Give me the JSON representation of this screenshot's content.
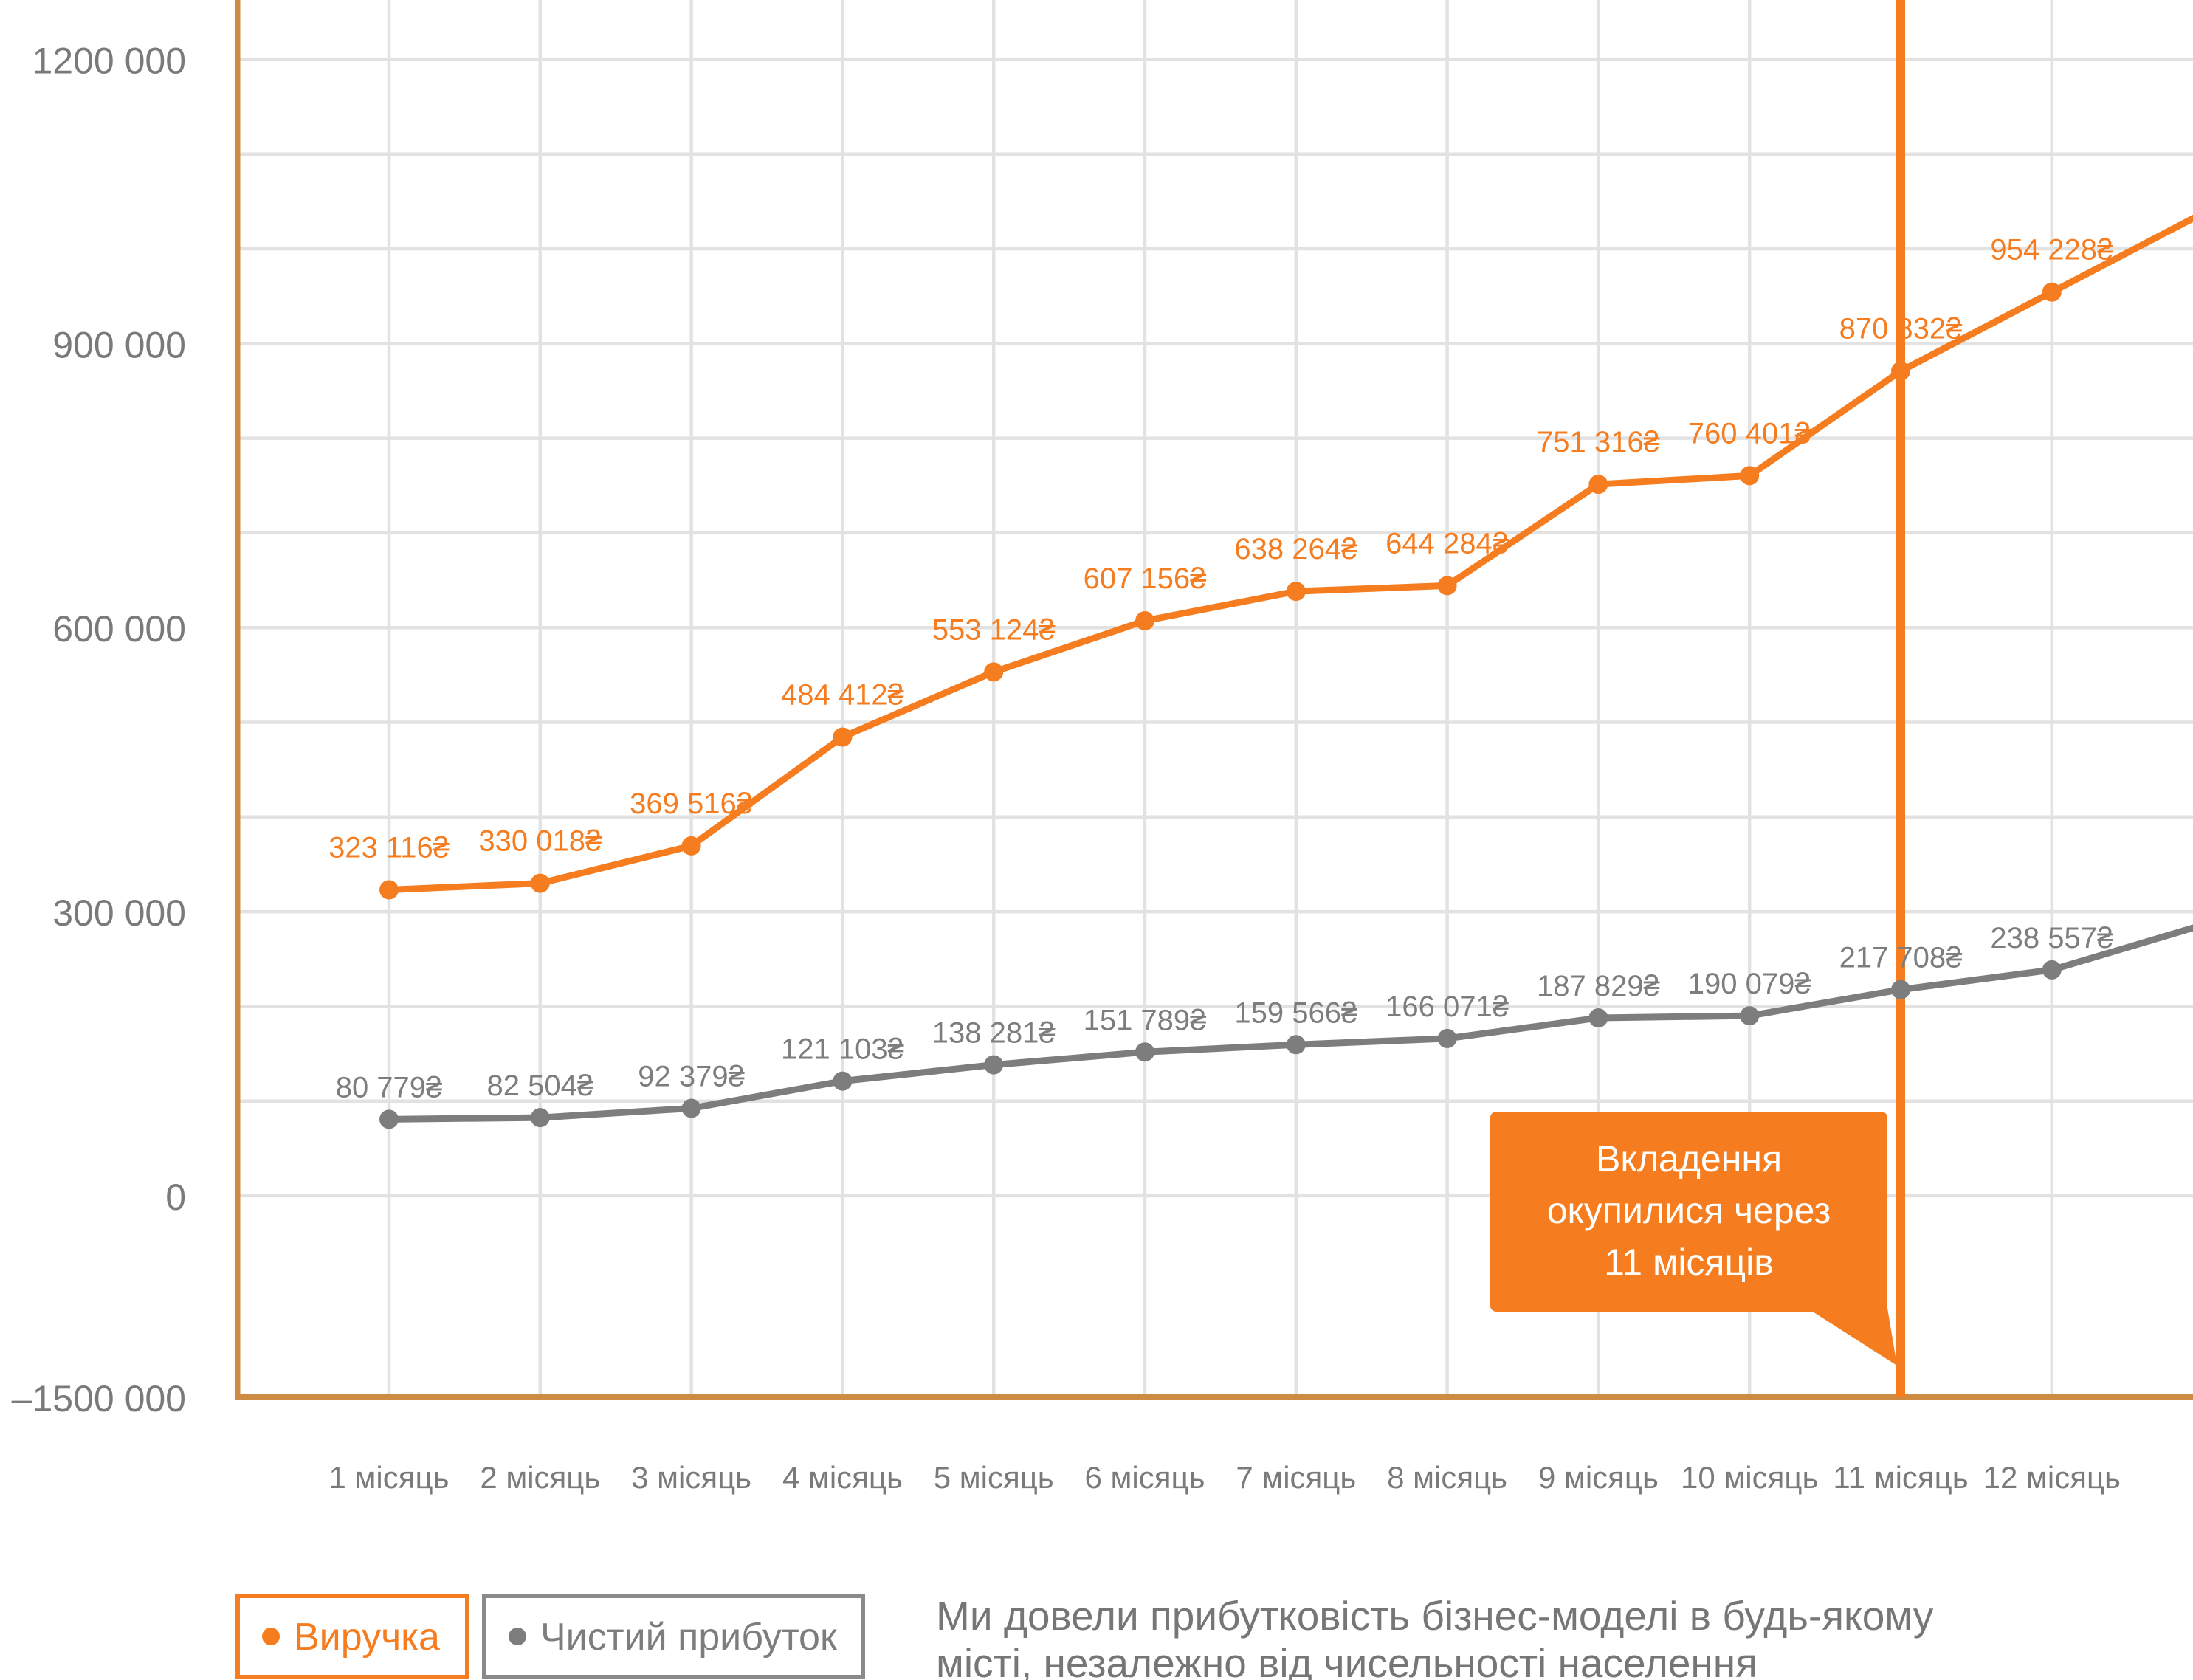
{
  "chart_data": {
    "type": "line",
    "currency_suffix": "₴",
    "categories": [
      "1 місяць",
      "2 місяць",
      "3 місяць",
      "4 місяць",
      "5 місяць",
      "6 місяць",
      "7 місяць",
      "8 місяць",
      "9 місяць",
      "10 місяць",
      "11 місяць",
      "12 місяць"
    ],
    "series": [
      {
        "name": "Виручка",
        "color": "#f57d20",
        "values": [
          323116,
          330018,
          369516,
          484412,
          553124,
          607156,
          638264,
          644284,
          751316,
          760401,
          870832,
          954228
        ],
        "labels": [
          "323 116₴",
          "330 018₴",
          "369 516₴",
          "484 412₴",
          "553 124₴",
          "607 156₴",
          "638 264₴",
          "644 284₴",
          "751 316₴",
          "760 401₴",
          "870 832₴",
          "954 228₴"
        ],
        "edge_extension_value": 1037600
      },
      {
        "name": "Чистий прибуток",
        "color": "#7d7d7d",
        "values": [
          80779,
          82504,
          92379,
          121103,
          138281,
          151789,
          159566,
          166071,
          187829,
          190079,
          217708,
          238557
        ],
        "labels": [
          "80 779₴",
          "82 504₴",
          "92 379₴",
          "121 103₴",
          "138 281₴",
          "151 789₴",
          "159 566₴",
          "166 071₴",
          "187 829₴",
          "190 079₴",
          "217 708₴",
          "238 557₴"
        ],
        "edge_extension_value": 286000
      }
    ],
    "y_tick_labels": [
      "1200 000",
      "900 000",
      "600 000",
      "300 000",
      "0",
      "–1500 000"
    ],
    "y_tick_values": [
      1200000,
      900000,
      600000,
      300000,
      0,
      -1500000
    ],
    "ylim_labeled": [
      -1500000,
      1200000
    ],
    "grid_step": 100000,
    "grid": "on",
    "annotation": {
      "lines": [
        "Вкладення",
        "окупилися через",
        "11 місяців"
      ],
      "at_month": 11,
      "background": "#f57d20",
      "text_color": "#ffffff"
    },
    "colors": {
      "accent": "#f57d20",
      "gray_series": "#7d7d7d",
      "axis": "#ce8c43",
      "grid": "#e2e2e2",
      "tick_text": "#7a7a7a"
    },
    "legend_position": "bottom-left"
  },
  "legend": {
    "items": [
      {
        "label": "Виручка",
        "color": "#f57d20"
      },
      {
        "label": "Чистий прибуток",
        "color": "#7d7d7d"
      }
    ]
  },
  "caption": {
    "lines": [
      "Ми довели прибутковість бізнес-моделі в будь-якому",
      "місті, незалежно від чисельності населення"
    ]
  }
}
